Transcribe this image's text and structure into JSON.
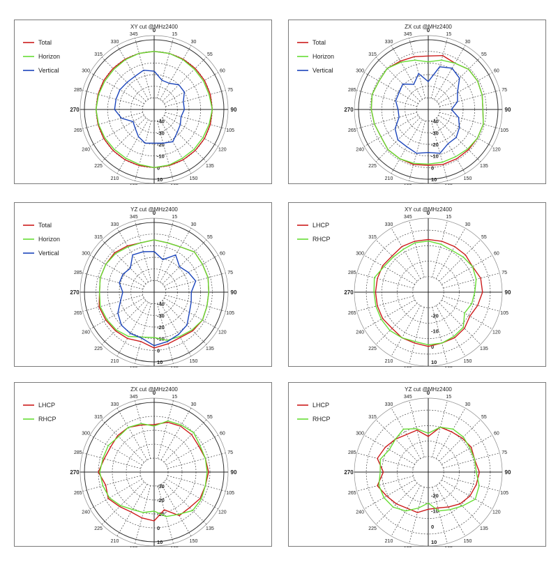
{
  "chart_data": [
    {
      "type": "polar-line",
      "title": "XY cut @MHz2400",
      "angle_labels": [
        "0",
        "15",
        "30",
        "55",
        "60",
        "75",
        "90",
        "105",
        "120",
        "135",
        "150",
        "165",
        "180",
        "195",
        "210",
        "225",
        "240",
        "265",
        "270",
        "285",
        "300",
        "315",
        "330",
        "345"
      ],
      "radial_labels": [
        "-40",
        "-30",
        "-20",
        "-10",
        "0",
        "10"
      ],
      "rlim": [
        -50,
        10
      ],
      "grid": true,
      "legend": "top-left",
      "series": [
        {
          "name": "Total",
          "color": "#cc1a1a",
          "values": [
            0,
            0,
            0,
            0,
            0,
            0,
            0,
            0,
            0,
            0,
            0,
            0,
            0,
            0,
            0,
            0,
            0,
            0,
            0,
            0,
            0,
            0,
            0,
            0
          ]
        },
        {
          "name": "Horizon",
          "color": "#66dd33",
          "values": [
            0,
            0,
            -0.5,
            -1,
            -1,
            -1,
            0,
            -1,
            -1.5,
            -1.5,
            -1.5,
            -0.5,
            0,
            -1,
            -1.5,
            -1.5,
            -1,
            -0.5,
            0,
            -0.5,
            -1,
            -1,
            -0.5,
            0
          ]
        },
        {
          "name": "Vertical",
          "color": "#1a44bb",
          "values": [
            -17,
            -24,
            -24,
            -20,
            -20,
            -24,
            -24,
            -26,
            -24,
            -22,
            -18,
            -20,
            -21,
            -20,
            -23,
            -27,
            -29,
            -21,
            -16,
            -16,
            -16,
            -17,
            -17,
            -15
          ]
        }
      ]
    },
    {
      "type": "polar-line",
      "title": "ZX cut @MHz2400",
      "angle_labels": [
        "0",
        "15",
        "30",
        "55",
        "60",
        "75",
        "90",
        "105",
        "120",
        "135",
        "150",
        "165",
        "180",
        "195",
        "210",
        "225",
        "240",
        "265",
        "270",
        "285",
        "300",
        "315",
        "330",
        "345"
      ],
      "radial_labels": [
        "-40",
        "-30",
        "-20",
        "-10",
        "0",
        "10"
      ],
      "rlim": [
        -50,
        10
      ],
      "grid": true,
      "legend": "top-left",
      "series": [
        {
          "name": "Total",
          "color": "#cc1a1a",
          "values": [
            -4,
            -2,
            -4,
            -1,
            -1,
            -2,
            -3,
            -1,
            -1,
            -1,
            -1,
            -1,
            -2,
            -1,
            -1,
            -1,
            -3,
            -2,
            -1,
            0,
            -1,
            0,
            -2,
            -3
          ]
        },
        {
          "name": "Horizon",
          "color": "#66dd33",
          "values": [
            -9,
            -6,
            -4,
            -1,
            -1,
            -2,
            -3,
            -1,
            -1,
            -2,
            -3,
            -3,
            -3,
            -2,
            -1,
            -1,
            -3,
            -2,
            -1,
            0,
            -1,
            0,
            -3,
            -6
          ]
        },
        {
          "name": "Vertical",
          "color": "#1a44bb",
          "values": [
            -26,
            -12,
            -9,
            -12,
            -21,
            -24,
            -30,
            -23,
            -19,
            -16,
            -16,
            -11,
            -13,
            -11,
            -13,
            -13,
            -17,
            -24,
            -24,
            -21,
            -21,
            -19,
            -25,
            -18
          ]
        }
      ]
    },
    {
      "type": "polar-line",
      "title": "YZ cut @MHz2400",
      "angle_labels": [
        "0",
        "15",
        "30",
        "55",
        "60",
        "75",
        "90",
        "105",
        "120",
        "135",
        "150",
        "165",
        "180",
        "195",
        "210",
        "225",
        "240",
        "265",
        "270",
        "285",
        "300",
        "315",
        "330",
        "345"
      ],
      "radial_labels": [
        "-40",
        "-30",
        "-20",
        "-10",
        "0",
        "10"
      ],
      "rlim": [
        -50,
        10
      ],
      "grid": true,
      "legend": "top-left",
      "series": [
        {
          "name": "Total",
          "color": "#cc1a1a",
          "values": [
            -5,
            -6,
            -5,
            -1,
            -2,
            -2,
            -3,
            -3,
            -2,
            -3,
            -5,
            -4,
            -2,
            -6,
            -4,
            -3,
            -2,
            -1,
            -3,
            -2,
            -2,
            -2,
            -4,
            -6
          ]
        },
        {
          "name": "Horizon",
          "color": "#66dd33",
          "values": [
            -5,
            -6,
            -5,
            -1,
            -2,
            -2,
            -3,
            -3,
            -2,
            -4,
            -6,
            -7,
            -11,
            -10,
            -6,
            -4,
            -3,
            -2,
            -3,
            -2,
            -2,
            -3,
            -5,
            -6
          ]
        },
        {
          "name": "Vertical",
          "color": "#1a44bb",
          "values": [
            -15,
            -21,
            -13,
            -19,
            -16,
            -13,
            -18,
            -17,
            -15,
            -10,
            -8,
            -6,
            -4,
            -9,
            -9,
            -10,
            -14,
            -20,
            -23,
            -19,
            -19,
            -21,
            -13,
            -14
          ]
        }
      ]
    },
    {
      "type": "polar-line",
      "title": "XY cut @MHz2400",
      "angle_labels": [
        "0",
        "15",
        "30",
        "55",
        "60",
        "75",
        "90",
        "105",
        "120",
        "135",
        "150",
        "165",
        "180",
        "195",
        "210",
        "225",
        "240",
        "265",
        "270",
        "285",
        "300",
        "315",
        "330",
        "345"
      ],
      "radial_labels": [
        "-20",
        "-10",
        "0",
        "10"
      ],
      "rlim": [
        -35,
        10
      ],
      "grid": true,
      "legend": "top-left",
      "series": [
        {
          "name": "LHCP",
          "color": "#cc1a1a",
          "values": [
            -1,
            -1,
            -1,
            -1,
            -2,
            0,
            0,
            -2,
            -4,
            -2,
            -1,
            -1,
            0,
            -1,
            -1,
            -2,
            -1,
            -1,
            -1,
            -1,
            -1,
            -2,
            -1,
            -1
          ]
        },
        {
          "name": "RHCP",
          "color": "#66dd33",
          "values": [
            -2,
            -3,
            -4,
            -3,
            -2,
            -3,
            -5,
            -6,
            -8,
            -3,
            -2,
            -1,
            -1,
            -2,
            -1,
            0,
            0,
            0,
            0,
            1,
            -2,
            -3,
            -3,
            -2
          ]
        }
      ]
    },
    {
      "type": "polar-line",
      "title": "ZX cut @MHz2400",
      "angle_labels": [
        "0",
        "15",
        "30",
        "55",
        "60",
        "75",
        "90",
        "105",
        "120",
        "135",
        "150",
        "165",
        "180",
        "195",
        "210",
        "225",
        "240",
        "265",
        "270",
        "285",
        "300",
        "315",
        "330",
        "345"
      ],
      "radial_labels": [
        "-30",
        "-20",
        "-10",
        "0",
        "10"
      ],
      "rlim": [
        -40,
        10
      ],
      "grid": true,
      "legend": "top-left",
      "series": [
        {
          "name": "LHCP",
          "color": "#cc1a1a",
          "values": [
            -6,
            -3,
            -2,
            -2,
            -3,
            -2,
            -1,
            -2,
            -2,
            -4,
            -4,
            -12,
            -5,
            -6,
            -7,
            -5,
            -2,
            -4,
            0,
            -3,
            -4,
            -3,
            -3,
            -5
          ]
        },
        {
          "name": "RHCP",
          "color": "#66dd33",
          "values": [
            -7,
            -2,
            -1,
            0,
            -2,
            -2,
            -2,
            -2,
            -1,
            -1,
            -5,
            -7,
            -12,
            -10,
            -9,
            -6,
            -3,
            -2,
            -1,
            -2,
            -2,
            -4,
            -3,
            -4
          ]
        }
      ]
    },
    {
      "type": "polar-line",
      "title": "YZ cut @MHz2400",
      "angle_labels": [
        "0",
        "15",
        "30",
        "55",
        "60",
        "75",
        "90",
        "105",
        "120",
        "135",
        "150",
        "165",
        "180",
        "195",
        "210",
        "225",
        "240",
        "265",
        "270",
        "285",
        "300",
        "315",
        "330",
        "345"
      ],
      "radial_labels": [
        "-20",
        "-10",
        "0",
        "10"
      ],
      "rlim": [
        -35,
        10
      ],
      "grid": true,
      "legend": "top-left",
      "series": [
        {
          "name": "LHCP",
          "color": "#cc1a1a",
          "values": [
            -12,
            -5,
            -5,
            -4,
            -3,
            -4,
            -2,
            -3,
            -4,
            -6,
            -9,
            -11,
            -11,
            -8,
            -8,
            -6,
            -4,
            -1,
            -6,
            -1,
            -3,
            -5,
            -7,
            -7
          ]
        },
        {
          "name": "RHCP",
          "color": "#66dd33",
          "values": [
            -10,
            -5,
            -3,
            -3,
            -4,
            -4,
            -4,
            -1,
            0,
            -4,
            -7,
            -9,
            -15,
            -11,
            -6,
            -3,
            -2,
            -2,
            -4,
            -3,
            -6,
            -5,
            -3,
            -6
          ]
        }
      ]
    }
  ]
}
